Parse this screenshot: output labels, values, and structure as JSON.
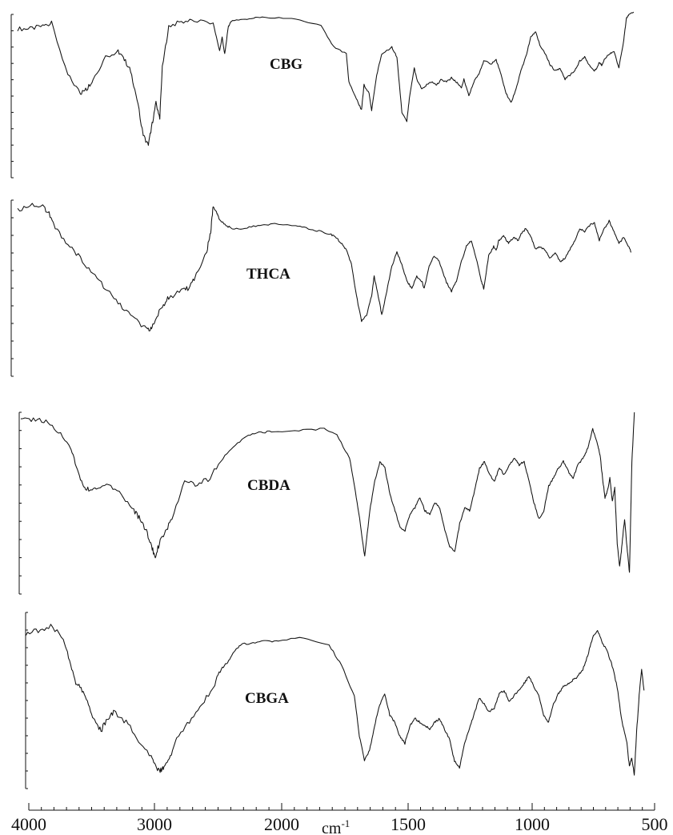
{
  "chart_data": {
    "type": "line",
    "title": "",
    "xlabel": "cm",
    "xlabel_superscript": "-1",
    "ylabel": "",
    "x_axis": {
      "reversed": true,
      "range": [
        4000,
        500
      ],
      "tick_labels": [
        "4000",
        "3000",
        "2000",
        "1500",
        "1000",
        "500"
      ],
      "tick_values": [
        4000,
        3000,
        2000,
        1500,
        1000,
        500
      ]
    },
    "grid": false,
    "legend": "none",
    "y_units": "relative transmittance (0 = strongest absorption, 100 = baseline)",
    "series": [
      {
        "name": "CBG",
        "x": [
          4000,
          3900,
          3800,
          3730,
          3600,
          3500,
          3450,
          3400,
          3300,
          3200,
          3150,
          3100,
          3050,
          3000,
          2960,
          2930,
          2900,
          2870,
          2850,
          2800,
          2700,
          2600,
          2450,
          2400,
          2380,
          2360,
          2330,
          2300,
          2200,
          2100,
          2000,
          1900,
          1800,
          1750,
          1700,
          1690,
          1660,
          1640,
          1630,
          1610,
          1600,
          1580,
          1560,
          1520,
          1500,
          1480,
          1460,
          1450,
          1430,
          1420,
          1400,
          1380,
          1360,
          1340,
          1320,
          1300,
          1280,
          1260,
          1240,
          1230,
          1210,
          1190,
          1170,
          1150,
          1120,
          1100,
          1080,
          1060,
          1040,
          1020,
          1000,
          980,
          960,
          940,
          920,
          900,
          880,
          860,
          840,
          820,
          800,
          780,
          760,
          740,
          720,
          700,
          690,
          680,
          670,
          660,
          640,
          620,
          600,
          580,
          570,
          560,
          540
        ],
        "y": [
          88,
          88,
          90,
          92,
          55,
          42,
          45,
          52,
          68,
          72,
          66,
          58,
          38,
          12,
          5,
          20,
          35,
          25,
          60,
          90,
          93,
          94,
          92,
          72,
          82,
          70,
          90,
          94,
          95,
          96,
          96,
          95,
          90,
          75,
          70,
          50,
          38,
          30,
          48,
          42,
          30,
          55,
          70,
          75,
          68,
          28,
          22,
          38,
          60,
          52,
          45,
          48,
          50,
          48,
          52,
          50,
          53,
          50,
          46,
          52,
          40,
          50,
          56,
          65,
          63,
          66,
          55,
          42,
          35,
          45,
          58,
          68,
          82,
          86,
          75,
          70,
          62,
          58,
          60,
          52,
          55,
          58,
          65,
          68,
          62,
          58,
          60,
          64,
          62,
          66,
          70,
          72,
          60,
          80,
          95,
          98,
          100
        ]
      },
      {
        "name": "THCA",
        "x": [
          4000,
          3900,
          3800,
          3750,
          3700,
          3600,
          3500,
          3400,
          3300,
          3200,
          3100,
          3000,
          2960,
          2930,
          2900,
          2850,
          2800,
          2700,
          2650,
          2600,
          2500,
          2470,
          2450,
          2420,
          2400,
          2350,
          2300,
          2200,
          2100,
          2000,
          1900,
          1850,
          1800,
          1760,
          1740,
          1720,
          1700,
          1680,
          1660,
          1640,
          1620,
          1600,
          1590,
          1570,
          1560,
          1540,
          1520,
          1500,
          1480,
          1460,
          1440,
          1420,
          1400,
          1390,
          1370,
          1350,
          1330,
          1300,
          1280,
          1260,
          1240,
          1220,
          1200,
          1180,
          1160,
          1150,
          1130,
          1110,
          1100,
          1090,
          1070,
          1050,
          1030,
          1010,
          1000,
          980,
          960,
          940,
          920,
          900,
          880,
          860,
          840,
          820,
          800,
          780,
          760,
          740,
          720,
          700,
          680,
          660,
          640,
          620,
          600,
          580,
          560,
          550
        ],
        "y": [
          92,
          96,
          95,
          90,
          80,
          70,
          60,
          50,
          40,
          30,
          22,
          14,
          12,
          15,
          20,
          28,
          34,
          38,
          40,
          46,
          65,
          78,
          95,
          90,
          86,
          82,
          80,
          80,
          82,
          83,
          82,
          80,
          78,
          76,
          74,
          70,
          66,
          56,
          35,
          18,
          22,
          35,
          48,
          32,
          22,
          38,
          55,
          64,
          56,
          45,
          40,
          48,
          45,
          40,
          55,
          62,
          58,
          44,
          38,
          45,
          58,
          68,
          72,
          60,
          45,
          40,
          62,
          68,
          65,
          72,
          75,
          70,
          74,
          72,
          76,
          80,
          75,
          66,
          68,
          65,
          60,
          64,
          58,
          60,
          66,
          72,
          80,
          78,
          82,
          84,
          72,
          80,
          85,
          78,
          70,
          74,
          68,
          64
        ]
      },
      {
        "name": "CBDA",
        "x": [
          4000,
          3900,
          3800,
          3700,
          3600,
          3550,
          3500,
          3450,
          3400,
          3300,
          3200,
          3100,
          3050,
          3000,
          2960,
          2930,
          2900,
          2850,
          2800,
          2700,
          2600,
          2500,
          2400,
          2300,
          2200,
          2100,
          2000,
          1900,
          1800,
          1750,
          1700,
          1680,
          1660,
          1640,
          1620,
          1600,
          1580,
          1560,
          1540,
          1520,
          1500,
          1480,
          1460,
          1440,
          1420,
          1400,
          1380,
          1360,
          1340,
          1320,
          1300,
          1280,
          1260,
          1240,
          1220,
          1200,
          1180,
          1160,
          1140,
          1120,
          1100,
          1080,
          1060,
          1040,
          1020,
          1000,
          980,
          960,
          940,
          920,
          900,
          880,
          860,
          840,
          820,
          800,
          780,
          760,
          740,
          720,
          700,
          690,
          680,
          670,
          660,
          650,
          640,
          630,
          620,
          610,
          600,
          590,
          580,
          570,
          560,
          550
        ],
        "y": [
          95,
          96,
          94,
          88,
          78,
          64,
          55,
          52,
          54,
          56,
          50,
          40,
          35,
          28,
          18,
          12,
          20,
          28,
          34,
          58,
          56,
          60,
          72,
          80,
          86,
          88,
          88,
          89,
          90,
          86,
          72,
          55,
          35,
          12,
          40,
          58,
          70,
          66,
          50,
          40,
          30,
          28,
          38,
          42,
          48,
          40,
          38,
          45,
          42,
          28,
          18,
          15,
          32,
          42,
          40,
          52,
          66,
          70,
          62,
          58,
          66,
          62,
          68,
          72,
          68,
          70,
          58,
          45,
          35,
          40,
          55,
          60,
          66,
          70,
          64,
          60,
          68,
          72,
          78,
          90,
          80,
          74,
          60,
          48,
          52,
          60,
          46,
          54,
          20,
          6,
          20,
          35,
          18,
          2,
          70,
          100
        ]
      },
      {
        "name": "CBGA",
        "x": [
          4000,
          3900,
          3800,
          3700,
          3650,
          3600,
          3550,
          3500,
          3450,
          3400,
          3350,
          3300,
          3200,
          3100,
          3000,
          2960,
          2930,
          2900,
          2850,
          2800,
          2700,
          2600,
          2500,
          2450,
          2400,
          2350,
          2300,
          2200,
          2100,
          2000,
          1900,
          1800,
          1750,
          1700,
          1680,
          1660,
          1640,
          1620,
          1600,
          1580,
          1560,
          1540,
          1520,
          1500,
          1480,
          1460,
          1440,
          1420,
          1400,
          1380,
          1360,
          1340,
          1320,
          1300,
          1280,
          1260,
          1240,
          1220,
          1200,
          1180,
          1160,
          1140,
          1120,
          1100,
          1080,
          1060,
          1040,
          1020,
          1000,
          980,
          960,
          940,
          920,
          900,
          880,
          860,
          840,
          820,
          800,
          780,
          760,
          740,
          720,
          700,
          680,
          660,
          640,
          620,
          600,
          590,
          580,
          570,
          560,
          550,
          540,
          530
        ],
        "y": [
          90,
          92,
          94,
          88,
          75,
          62,
          58,
          50,
          40,
          35,
          42,
          46,
          40,
          30,
          20,
          14,
          12,
          15,
          20,
          30,
          40,
          50,
          62,
          70,
          74,
          80,
          84,
          85,
          86,
          86,
          88,
          84,
          72,
          55,
          32,
          18,
          24,
          38,
          50,
          56,
          44,
          40,
          32,
          28,
          38,
          42,
          40,
          38,
          36,
          40,
          42,
          36,
          30,
          18,
          14,
          28,
          36,
          45,
          54,
          50,
          46,
          48,
          56,
          58,
          52,
          55,
          58,
          62,
          66,
          60,
          55,
          44,
          40,
          50,
          56,
          60,
          62,
          64,
          66,
          70,
          78,
          88,
          92,
          85,
          80,
          72,
          60,
          40,
          28,
          15,
          20,
          10,
          35,
          55,
          70,
          58
        ]
      }
    ]
  }
}
